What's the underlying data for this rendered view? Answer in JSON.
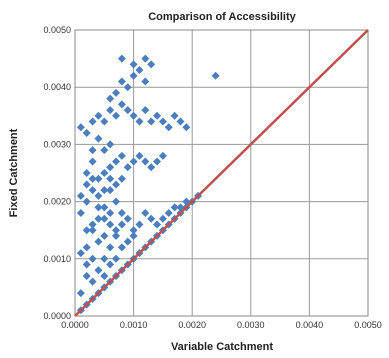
{
  "chart_data": {
    "type": "scatter",
    "title": "Comparison of Accessibility",
    "xlabel": "Variable Catchment",
    "ylabel": "Fixed Catchment",
    "xlim": [
      0,
      0.005
    ],
    "ylim": [
      0,
      0.005
    ],
    "xticks": [
      "0.0000",
      "0.0010",
      "0.0020",
      "0.0030",
      "0.0040",
      "0.0050"
    ],
    "yticks": [
      "0.0000",
      "0.0010",
      "0.0020",
      "0.0030",
      "0.0040",
      "0.0050"
    ],
    "grid": true,
    "colors": {
      "points": "#4a7ebf",
      "reference_line": "#c0504d"
    },
    "reference_line": {
      "x": [
        0,
        0.005
      ],
      "y": [
        0,
        0.005
      ]
    },
    "series": [
      {
        "points": [
          [
            0.0001,
            0.0004
          ],
          [
            0.0002,
            0.0007
          ],
          [
            0.0003,
            0.001
          ],
          [
            0.0002,
            0.0012
          ],
          [
            0.0003,
            0.0015
          ],
          [
            0.0001,
            0.0018
          ],
          [
            0.0002,
            0.002
          ],
          [
            0.0003,
            0.0022
          ],
          [
            0.0004,
            0.0019
          ],
          [
            0.0005,
            0.0017
          ],
          [
            0.0004,
            0.0024
          ],
          [
            0.0002,
            0.0025
          ],
          [
            0.0003,
            0.0027
          ],
          [
            0.0005,
            0.0025
          ],
          [
            0.0006,
            0.0022
          ],
          [
            0.0007,
            0.002
          ],
          [
            0.0008,
            0.0018
          ],
          [
            0.0009,
            0.0017
          ],
          [
            0.001,
            0.0015
          ],
          [
            0.0011,
            0.0016
          ],
          [
            0.0012,
            0.0018
          ],
          [
            0.0013,
            0.0017
          ],
          [
            0.0014,
            0.0016
          ],
          [
            0.0015,
            0.0017
          ],
          [
            0.0016,
            0.0018
          ],
          [
            0.0017,
            0.0019
          ],
          [
            0.0018,
            0.0019
          ],
          [
            0.0019,
            0.002
          ],
          [
            0.0006,
            0.0026
          ],
          [
            0.0007,
            0.0027
          ],
          [
            0.0008,
            0.0028
          ],
          [
            0.0009,
            0.0026
          ],
          [
            0.001,
            0.0027
          ],
          [
            0.0011,
            0.0028
          ],
          [
            0.0012,
            0.0027
          ],
          [
            0.0013,
            0.0026
          ],
          [
            0.0014,
            0.0027
          ],
          [
            0.0015,
            0.0028
          ],
          [
            0.0005,
            0.0029
          ],
          [
            0.0006,
            0.003
          ],
          [
            0.0003,
            0.0029
          ],
          [
            0.0004,
            0.0031
          ],
          [
            0.0002,
            0.0032
          ],
          [
            0.0001,
            0.0033
          ],
          [
            0.0003,
            0.0034
          ],
          [
            0.0004,
            0.0035
          ],
          [
            0.0005,
            0.0034
          ],
          [
            0.0006,
            0.0036
          ],
          [
            0.0007,
            0.0035
          ],
          [
            0.0008,
            0.0037
          ],
          [
            0.0009,
            0.0036
          ],
          [
            0.001,
            0.0035
          ],
          [
            0.0011,
            0.0034
          ],
          [
            0.0012,
            0.0036
          ],
          [
            0.0013,
            0.0034
          ],
          [
            0.0014,
            0.0035
          ],
          [
            0.0015,
            0.0034
          ],
          [
            0.0016,
            0.0033
          ],
          [
            0.0017,
            0.0035
          ],
          [
            0.0018,
            0.0034
          ],
          [
            0.0019,
            0.0033
          ],
          [
            0.0006,
            0.0038
          ],
          [
            0.0007,
            0.0039
          ],
          [
            0.0008,
            0.0041
          ],
          [
            0.0009,
            0.004
          ],
          [
            0.001,
            0.0042
          ],
          [
            0.0011,
            0.0043
          ],
          [
            0.0012,
            0.0041
          ],
          [
            0.001,
            0.0044
          ],
          [
            0.0008,
            0.0045
          ],
          [
            0.0013,
            0.0044
          ],
          [
            0.0012,
            0.0045
          ],
          [
            0.0024,
            0.0042
          ],
          [
            0.0001,
            0.0001
          ],
          [
            0.0002,
            0.0002
          ],
          [
            0.0003,
            0.0003
          ],
          [
            0.0004,
            0.0004
          ],
          [
            0.0005,
            0.0005
          ],
          [
            0.0006,
            0.0006
          ],
          [
            0.0007,
            0.0007
          ],
          [
            0.0008,
            0.0008
          ],
          [
            0.0009,
            0.0009
          ],
          [
            0.001,
            0.001
          ],
          [
            0.0011,
            0.0011
          ],
          [
            0.0012,
            0.0012
          ],
          [
            0.0013,
            0.0013
          ],
          [
            0.0014,
            0.0014
          ],
          [
            0.0015,
            0.0015
          ],
          [
            0.0016,
            0.0016
          ],
          [
            0.0017,
            0.0017
          ],
          [
            0.0018,
            0.0018
          ],
          [
            0.0019,
            0.0019
          ],
          [
            0.002,
            0.002
          ],
          [
            0.0021,
            0.0021
          ],
          [
            0.0005,
            0.001
          ],
          [
            0.0006,
            0.0012
          ],
          [
            0.0007,
            0.0014
          ],
          [
            0.0008,
            0.0012
          ],
          [
            0.0009,
            0.0013
          ],
          [
            0.001,
            0.0014
          ],
          [
            0.0004,
            0.0008
          ],
          [
            0.0003,
            0.0006
          ],
          [
            0.0005,
            0.0007
          ],
          [
            0.0006,
            0.0009
          ],
          [
            0.0007,
            0.001
          ],
          [
            0.0002,
            0.0009
          ],
          [
            0.0001,
            0.0011
          ],
          [
            0.0004,
            0.0013
          ],
          [
            0.0005,
            0.0014
          ],
          [
            0.0003,
            0.0016
          ],
          [
            0.0006,
            0.0016
          ],
          [
            0.0007,
            0.0015
          ],
          [
            0.0008,
            0.0016
          ],
          [
            0.0002,
            0.0015
          ],
          [
            0.0004,
            0.0017
          ],
          [
            0.0005,
            0.0019
          ],
          [
            0.0006,
            0.0018
          ],
          [
            0.0001,
            0.0021
          ],
          [
            0.0002,
            0.0023
          ],
          [
            0.0003,
            0.0024
          ],
          [
            0.0004,
            0.0021
          ],
          [
            0.0005,
            0.0022
          ],
          [
            0.0006,
            0.0024
          ],
          [
            0.0007,
            0.0023
          ],
          [
            0.0008,
            0.0024
          ]
        ]
      }
    ]
  }
}
